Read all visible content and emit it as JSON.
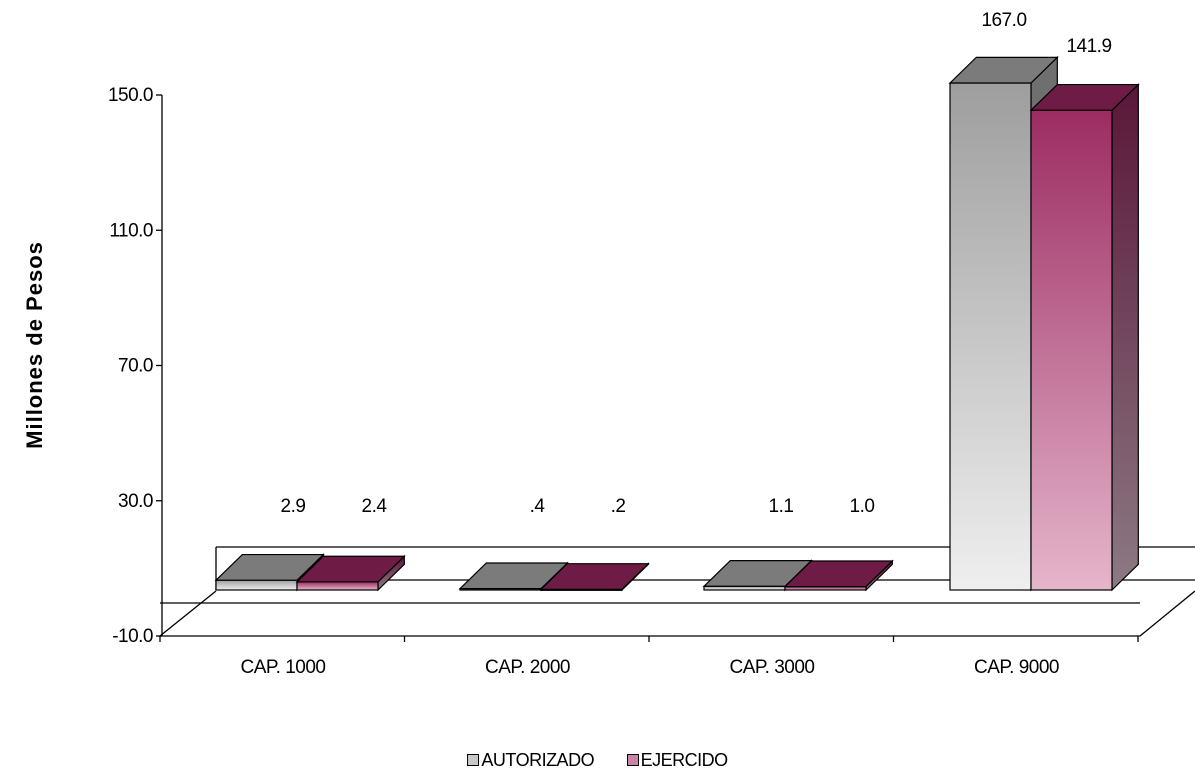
{
  "chart_data": {
    "type": "bar",
    "ylabel": "Millones de Pesos",
    "ylim": [
      -10,
      150
    ],
    "yticks": [
      "-10.0",
      "30.0",
      "70.0",
      "110.0",
      "150.0"
    ],
    "categories": [
      "CAP. 1000",
      "CAP. 2000",
      "CAP. 3000",
      "CAP. 9000"
    ],
    "series": [
      {
        "name": "AUTORIZADO",
        "values": [
          2.9,
          0.4,
          1.1,
          167.0
        ],
        "labels": [
          "2.9",
          ".4",
          "1.1",
          "167.0"
        ],
        "color": "#a0a0a0"
      },
      {
        "name": "EJERCIDO",
        "values": [
          2.4,
          0.2,
          1.0,
          141.9
        ],
        "labels": [
          "2.4",
          ".2",
          "1.0",
          "141.9"
        ],
        "color": "#9b2d63"
      }
    ],
    "legend_position": "bottom",
    "style": "3d-bar"
  }
}
